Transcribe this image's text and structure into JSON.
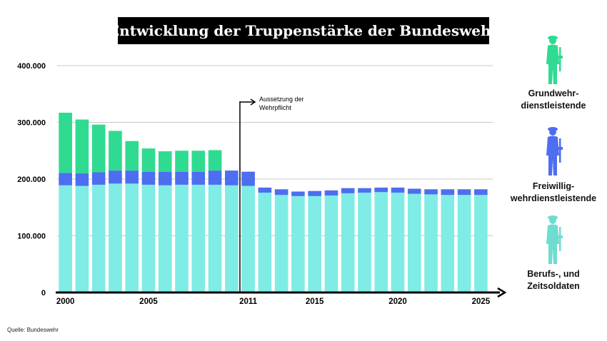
{
  "title": "Entwicklung der Truppenstärke der Bundeswehr",
  "source": "Quelle: Bundeswehr",
  "annotation": {
    "year": 2011,
    "lines": [
      "Aussetzung der",
      "Wehrpflicht"
    ]
  },
  "colors": {
    "grundwehr": "#2fdb90",
    "freiwillig": "#4d6ef0",
    "berufs": "#7fece5",
    "grid": "#c8c8c8",
    "axis": "#000000"
  },
  "legend": [
    {
      "name": "grundwehr",
      "lines": [
        "Grundwehr-",
        "dienstleistende"
      ],
      "color": "#2fdb90"
    },
    {
      "name": "freiwillig",
      "lines": [
        "Freiwillig-",
        "wehrdienstleistende"
      ],
      "color": "#4d6ef0"
    },
    {
      "name": "berufs",
      "lines": [
        "Berufs-, und",
        "Zeitsoldaten"
      ],
      "color": "#6fdcd0"
    }
  ],
  "chart_data": {
    "type": "bar",
    "stacked": true,
    "title": "Entwicklung der Truppenstärke der Bundeswehr",
    "categories": [
      2000,
      2001,
      2002,
      2003,
      2004,
      2005,
      2006,
      2007,
      2008,
      2009,
      2010,
      2011,
      2012,
      2013,
      2014,
      2015,
      2016,
      2017,
      2018,
      2019,
      2020,
      2021,
      2022,
      2023,
      2024,
      2025
    ],
    "x_tick_labels": [
      {
        "year": 2000,
        "label": "2000"
      },
      {
        "year": 2005,
        "label": "2005"
      },
      {
        "year": 2011,
        "label": "2011"
      },
      {
        "year": 2015,
        "label": "2015"
      },
      {
        "year": 2020,
        "label": "2020"
      },
      {
        "year": 2025,
        "label": "2025"
      }
    ],
    "y_ticks": [
      {
        "value": 0,
        "label": "0"
      },
      {
        "value": 100000,
        "label": "100.000"
      },
      {
        "value": 200000,
        "label": "200.000"
      },
      {
        "value": 300000,
        "label": "300.000"
      },
      {
        "value": 400000,
        "label": "400.000"
      }
    ],
    "ylim": [
      0,
      400000
    ],
    "series": [
      {
        "name": "Berufs-, und Zeitsoldaten",
        "key": "berufs",
        "values": [
          189000,
          188000,
          190000,
          192000,
          192000,
          190000,
          189000,
          190000,
          190000,
          190000,
          189000,
          188000,
          176000,
          172000,
          170000,
          170000,
          171000,
          175000,
          176000,
          177000,
          176000,
          174000,
          173000,
          172000,
          172000,
          172000
        ]
      },
      {
        "name": "Freiwilligwehrdienstleistende",
        "key": "freiwillig",
        "values": [
          22000,
          22000,
          22000,
          23000,
          23000,
          23000,
          24000,
          23000,
          23000,
          25000,
          26000,
          25000,
          9000,
          10000,
          8000,
          9000,
          9000,
          9000,
          8000,
          8000,
          9000,
          9000,
          9000,
          10000,
          10000,
          10000
        ]
      },
      {
        "name": "Grundwehrdienstleistende",
        "key": "grundwehr",
        "values": [
          106000,
          95000,
          84000,
          70000,
          52000,
          41000,
          36000,
          37000,
          37000,
          36000,
          0,
          0,
          0,
          0,
          0,
          0,
          0,
          0,
          0,
          0,
          0,
          0,
          0,
          0,
          0,
          0
        ]
      }
    ]
  }
}
